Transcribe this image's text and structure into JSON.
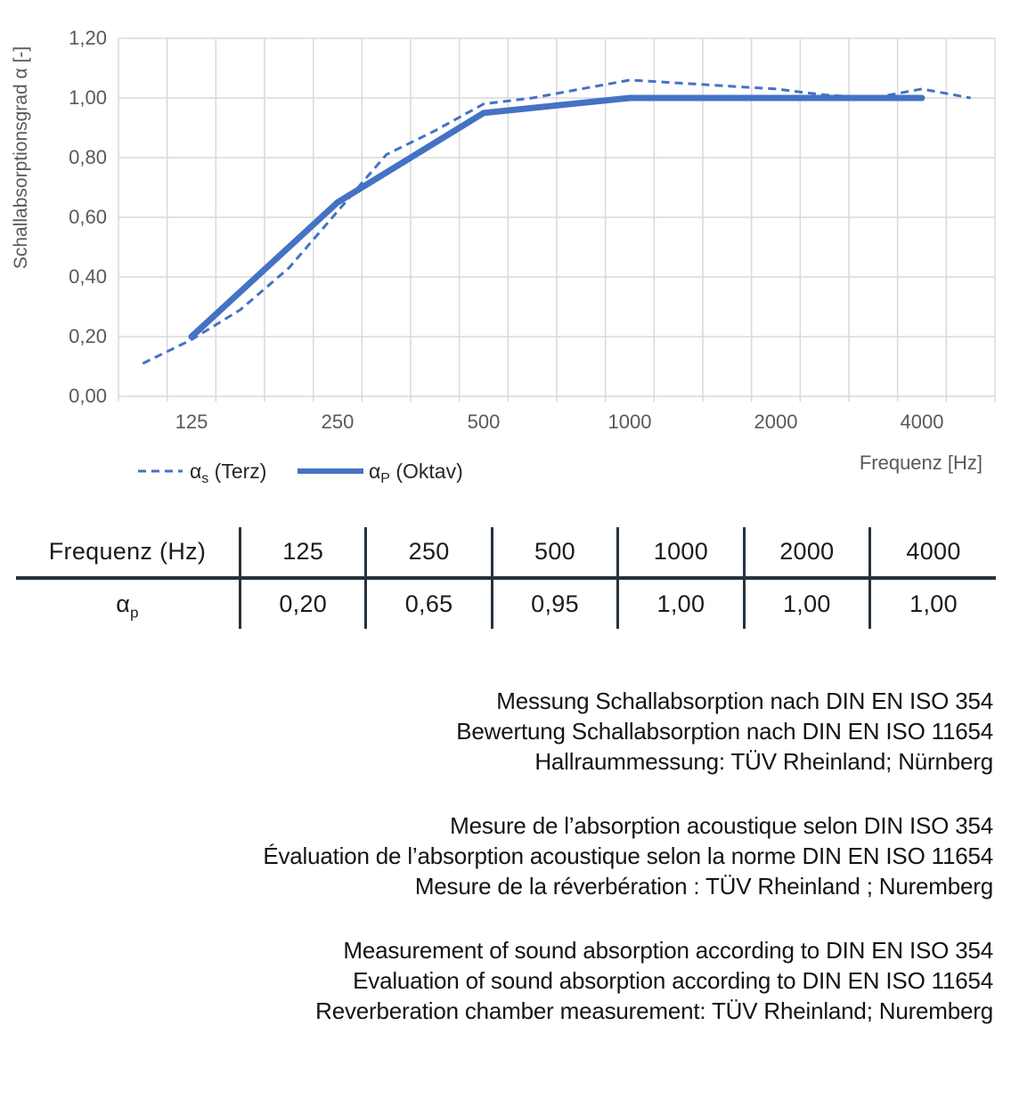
{
  "chart_data": {
    "type": "line",
    "title": "",
    "xlabel": "Frequenz [Hz]",
    "ylabel": "Schallabsorptionsgrad α [-]",
    "ylim": [
      0,
      1.2
    ],
    "y_step": 0.2,
    "y_tick_labels": [
      "0,00",
      "0,20",
      "0,40",
      "0,60",
      "0,80",
      "1,00",
      "1,20"
    ],
    "grid": true,
    "x_scale": "third-octave category axis (logarithmic spacing)",
    "categories": [
      100,
      125,
      160,
      200,
      250,
      315,
      400,
      500,
      630,
      800,
      1000,
      1250,
      1600,
      2000,
      2500,
      3150,
      4000,
      5000
    ],
    "x_tick_labels": [
      "125",
      "250",
      "500",
      "1000",
      "2000",
      "4000"
    ],
    "legend_position": "bottom-left",
    "series": [
      {
        "name": "αs (Terz)",
        "legend": {
          "base": "α",
          "sub": "s",
          "rest": " (Terz)"
        },
        "style": "dashed",
        "stroke_width": 3,
        "x": [
          100,
          125,
          160,
          200,
          250,
          315,
          400,
          500,
          630,
          800,
          1000,
          1250,
          1600,
          2000,
          2500,
          3150,
          4000,
          5000
        ],
        "values": [
          0.11,
          0.19,
          0.29,
          0.43,
          0.62,
          0.81,
          0.89,
          0.98,
          1.0,
          1.03,
          1.06,
          1.05,
          1.04,
          1.03,
          1.01,
          1.0,
          1.03,
          1.0
        ]
      },
      {
        "name": "αP (Oktav)",
        "legend": {
          "base": "α",
          "sub": "P",
          "rest": " (Oktav)"
        },
        "style": "solid",
        "stroke_width": 7,
        "x": [
          125,
          250,
          500,
          1000,
          2000,
          4000
        ],
        "values": [
          0.2,
          0.65,
          0.95,
          1.0,
          1.0,
          1.0
        ]
      }
    ],
    "colors": {
      "series_blue": "#4472C4",
      "grid": "#D9D9D9",
      "axis_text": "#595959",
      "legend_text": "#262626"
    }
  },
  "table": {
    "header_label": "Frequenz (Hz)",
    "frequencies": [
      "125",
      "250",
      "500",
      "1000",
      "2000",
      "4000"
    ],
    "row_label": {
      "base": "α",
      "sub": "p"
    },
    "values": [
      "0,20",
      "0,65",
      "0,95",
      "1,00",
      "1,00",
      "1,00"
    ]
  },
  "notes": {
    "german": [
      "Messung Schallabsorption nach DIN EN ISO 354",
      "Bewertung Schallabsorption nach DIN EN ISO 11654",
      "Hallraummessung: TÜV Rheinland; Nürnberg"
    ],
    "french": [
      "Mesure de l’absorption acoustique selon DIN ISO 354",
      "Évaluation de l’absorption acoustique selon la norme DIN EN ISO 11654",
      "Mesure de la réverbération : TÜV Rheinland ; Nuremberg"
    ],
    "english": [
      "Measurement of sound absorption according to DIN EN ISO 354",
      "Evaluation of sound absorption according to DIN EN ISO 11654",
      "Reverberation chamber measurement: TÜV Rheinland; Nuremberg"
    ]
  }
}
